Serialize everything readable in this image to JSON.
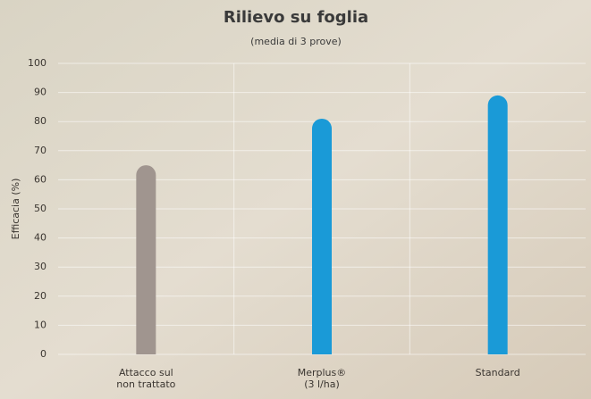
{
  "chart_data": {
    "type": "bar",
    "title": "Rilievo su foglia",
    "subtitle": "(media di 3 prove)",
    "y_label": "Efficacia (%)",
    "categories": [
      [
        "Attacco sul",
        "non trattato"
      ],
      [
        "Merplus®",
        "(3 l/ha)"
      ],
      [
        "Standard"
      ]
    ],
    "values": [
      65,
      81,
      89
    ],
    "colors": [
      "#a0958f",
      "#1a9ad7",
      "#1a9ad7"
    ],
    "ylim": [
      0,
      100
    ],
    "yticks": [
      0,
      10,
      20,
      30,
      40,
      50,
      60,
      70,
      80,
      90,
      100
    ],
    "grid": true
  }
}
